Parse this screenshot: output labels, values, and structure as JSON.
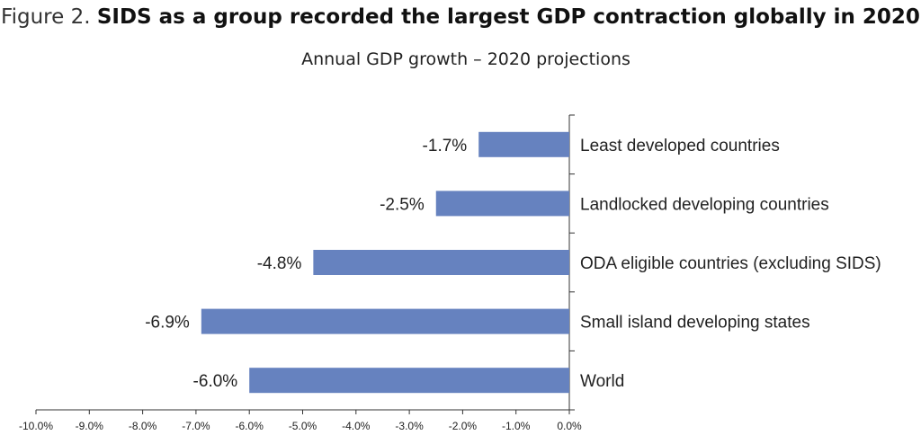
{
  "figure": {
    "prefix": "Figure 2.",
    "title": "SIDS as a group recorded the largest GDP contraction globally in 2020",
    "subtitle": "Annual GDP growth – 2020 projections"
  },
  "colors": {
    "bar": "#6682bf",
    "axis": "#333333"
  },
  "chart_data": {
    "type": "bar",
    "orientation": "horizontal",
    "categories": [
      "Least developed countries",
      "Landlocked developing countries",
      "ODA eligible countries (excluding SIDS)",
      "Small island developing states",
      "World"
    ],
    "values": [
      -1.7,
      -2.5,
      -4.8,
      -6.9,
      -6.0
    ],
    "value_labels": [
      "-1.7%",
      "-2.5%",
      "-4.8%",
      "-6.9%",
      "-6.0%"
    ],
    "xlim": [
      -10.0,
      0.0
    ],
    "xticks": [
      -10.0,
      -9.0,
      -8.0,
      -7.0,
      -6.0,
      -5.0,
      -4.0,
      -3.0,
      -2.0,
      -1.0,
      0.0
    ],
    "xtick_labels": [
      "-10.0%",
      "-9.0%",
      "-8.0%",
      "-7.0%",
      "-6.0%",
      "-5.0%",
      "-4.0%",
      "-3.0%",
      "-2.0%",
      "-1.0%",
      "0.0%"
    ],
    "grid": false,
    "legend": "none"
  }
}
